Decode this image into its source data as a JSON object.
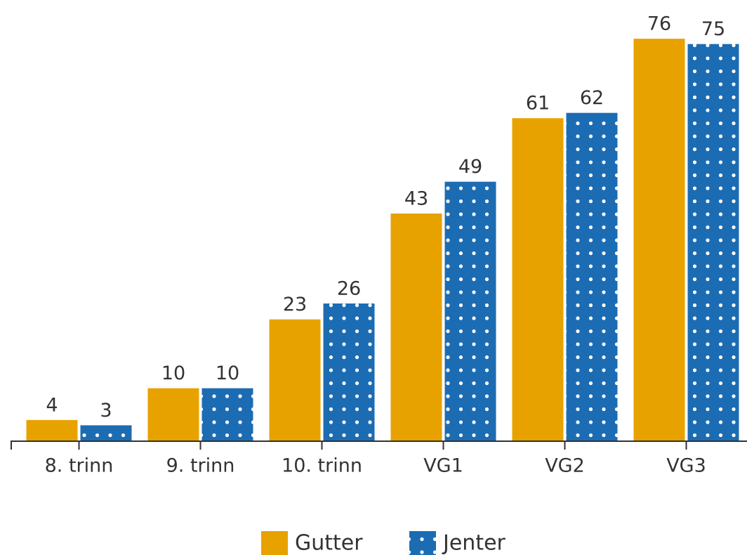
{
  "chart_data": {
    "type": "bar",
    "categories": [
      "8. trinn",
      "9. trinn",
      "10. trinn",
      "VG1",
      "VG2",
      "VG3"
    ],
    "series": [
      {
        "name": "Gutter",
        "color": "#e8a200",
        "values": [
          4,
          10,
          23,
          43,
          61,
          76
        ]
      },
      {
        "name": "Jenter",
        "color": "#1c6cb4",
        "pattern": "dots",
        "values": [
          3,
          10,
          26,
          49,
          62,
          75
        ]
      }
    ],
    "ylim": [
      0,
      80
    ]
  }
}
